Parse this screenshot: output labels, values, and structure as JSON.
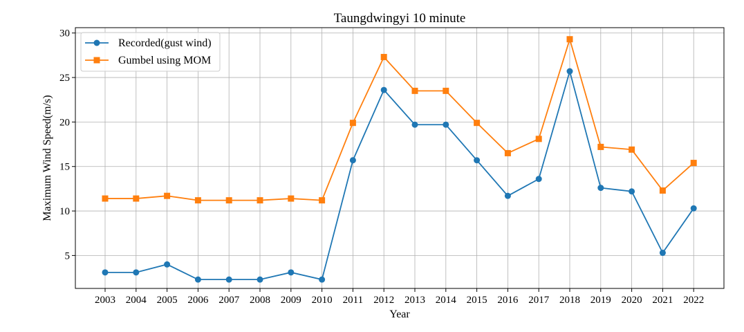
{
  "chart_data": {
    "type": "line",
    "title": "Taungdwingyi 10 minute",
    "xlabel": "Year",
    "ylabel": "Maximum Wind Speed(m/s)",
    "categories": [
      "2003",
      "2004",
      "2005",
      "2006",
      "2007",
      "2008",
      "2009",
      "2010",
      "2011",
      "2012",
      "2013",
      "2014",
      "2015",
      "2016",
      "2017",
      "2018",
      "2019",
      "2020",
      "2021",
      "2022"
    ],
    "ylim": [
      1.3,
      30.6
    ],
    "yticks": [
      5,
      10,
      15,
      20,
      25,
      30
    ],
    "grid": true,
    "legend_position": "upper-left",
    "series": [
      {
        "name": "Recorded(gust wind)",
        "color": "#1f77b4",
        "marker": "circle",
        "values": [
          3.1,
          3.1,
          4.0,
          2.3,
          2.3,
          2.3,
          3.1,
          2.3,
          15.7,
          23.6,
          19.7,
          19.7,
          15.7,
          11.7,
          13.6,
          25.7,
          12.6,
          12.2,
          5.3,
          10.3
        ]
      },
      {
        "name": "Gumbel using MOM",
        "color": "#ff7f0e",
        "marker": "square",
        "values": [
          11.4,
          11.4,
          11.7,
          11.2,
          11.2,
          11.2,
          11.4,
          11.2,
          19.9,
          27.3,
          23.5,
          23.5,
          19.9,
          16.5,
          18.1,
          29.3,
          17.2,
          16.9,
          12.3,
          15.4
        ]
      }
    ]
  }
}
